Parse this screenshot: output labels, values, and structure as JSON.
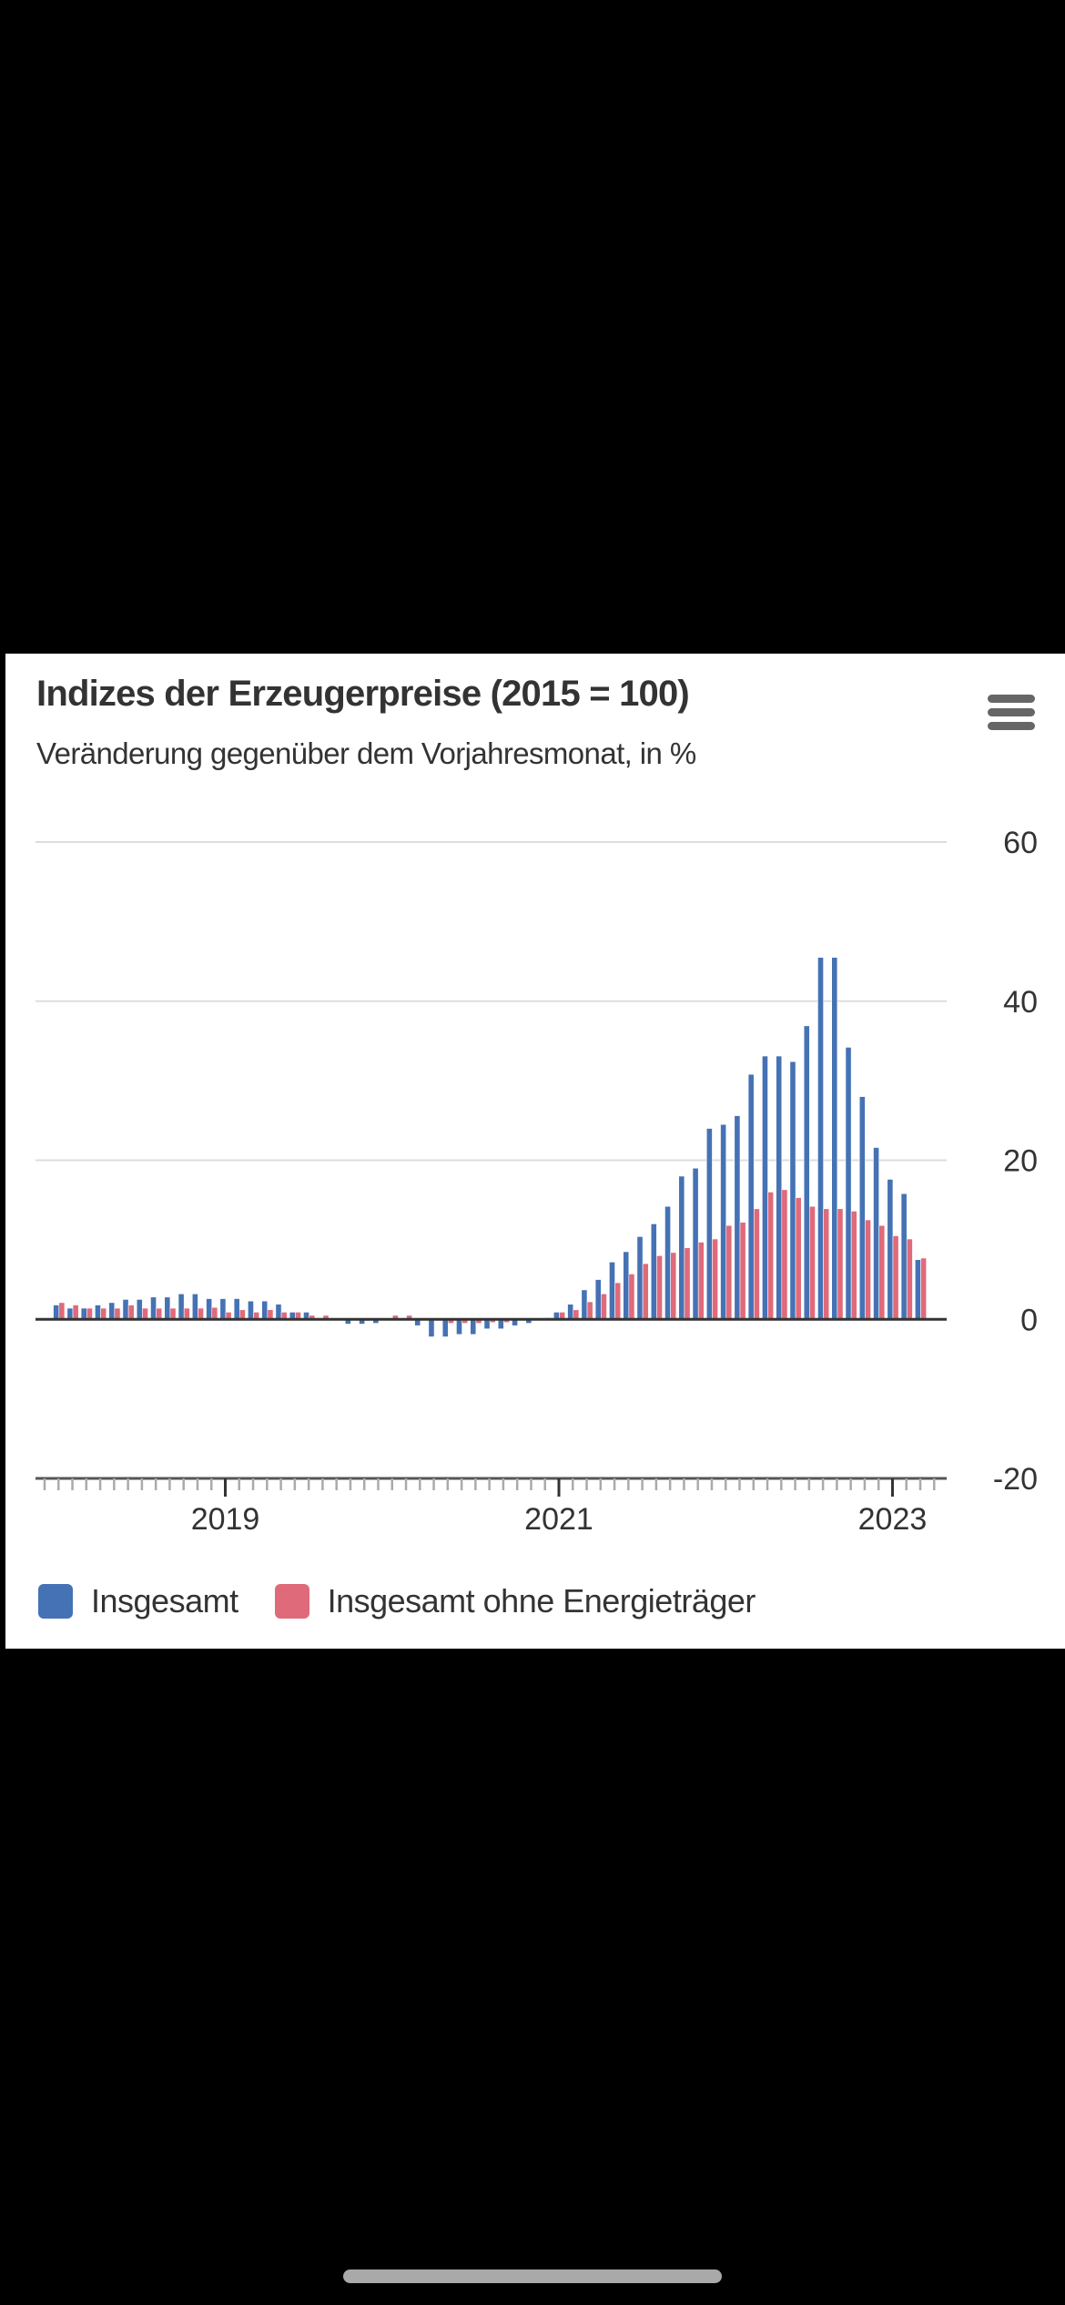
{
  "header": {
    "title": "Indizes der Erzeugerpreise (2015 = 100)",
    "subtitle": "Veränderung gegenüber dem Vorjahresmonat, in %",
    "menu_icon": "hamburger-menu-icon"
  },
  "colors": {
    "series_1": "#4572B4",
    "series_2": "#DF6A7A",
    "gridline": "#dddddd",
    "axis": "#555555",
    "zero_line": "#333333"
  },
  "chart_data": {
    "type": "bar",
    "title": "Indizes der Erzeugerpreise (2015 = 100)",
    "subtitle": "Veränderung gegenüber dem Vorjahresmonat, in %",
    "xlabel": "",
    "ylabel": "",
    "ylim": [
      -20,
      60
    ],
    "yticks": [
      "60",
      "40",
      "20",
      "0",
      "-20"
    ],
    "ytick_values": [
      60,
      40,
      20,
      0,
      -20
    ],
    "yaxis_position": "right",
    "grid": true,
    "legend_position": "bottom-left",
    "x_start": "2018-01",
    "x_axis_ticks_from": "2017-12",
    "x_axis_ticks_to": "2023-04",
    "xtick_labels": [
      {
        "label": "2019",
        "month": "2019-01"
      },
      {
        "label": "2021",
        "month": "2021-01"
      },
      {
        "label": "2023",
        "month": "2023-01"
      }
    ],
    "categories": [
      "2018-01",
      "2018-02",
      "2018-03",
      "2018-04",
      "2018-05",
      "2018-06",
      "2018-07",
      "2018-08",
      "2018-09",
      "2018-10",
      "2018-11",
      "2018-12",
      "2019-01",
      "2019-02",
      "2019-03",
      "2019-04",
      "2019-05",
      "2019-06",
      "2019-07",
      "2019-08",
      "2019-09",
      "2019-10",
      "2019-11",
      "2019-12",
      "2020-01",
      "2020-02",
      "2020-03",
      "2020-04",
      "2020-05",
      "2020-06",
      "2020-07",
      "2020-08",
      "2020-09",
      "2020-10",
      "2020-11",
      "2020-12",
      "2021-01",
      "2021-02",
      "2021-03",
      "2021-04",
      "2021-05",
      "2021-06",
      "2021-07",
      "2021-08",
      "2021-09",
      "2021-10",
      "2021-11",
      "2021-12",
      "2022-01",
      "2022-02",
      "2022-03",
      "2022-04",
      "2022-05",
      "2022-06",
      "2022-07",
      "2022-08",
      "2022-09",
      "2022-10",
      "2022-11",
      "2022-12",
      "2023-01",
      "2023-02",
      "2023-03"
    ],
    "series": [
      {
        "name": "Insgesamt",
        "color": "#4572B4",
        "values": [
          1.8,
          1.4,
          1.4,
          1.8,
          2.1,
          2.5,
          2.5,
          2.8,
          2.8,
          3.2,
          3.2,
          2.6,
          2.6,
          2.6,
          2.3,
          2.3,
          1.9,
          0.9,
          0.9,
          0.1,
          -0.1,
          -0.6,
          -0.6,
          -0.5,
          -0.1,
          0.0,
          -0.8,
          -2.2,
          -2.2,
          -1.9,
          -1.9,
          -1.2,
          -1.2,
          -0.8,
          -0.5,
          0.1,
          0.9,
          1.9,
          3.7,
          5.0,
          7.2,
          8.5,
          10.4,
          12.0,
          14.2,
          18.0,
          19.0,
          24.0,
          24.5,
          25.6,
          30.8,
          33.1,
          33.1,
          32.4,
          36.9,
          45.5,
          45.5,
          34.2,
          28.0,
          21.6,
          17.6,
          15.8,
          7.5
        ]
      },
      {
        "name": "Insgesamt ohne Energieträger",
        "color": "#DF6A7A",
        "values": [
          2.1,
          1.8,
          1.4,
          1.4,
          1.4,
          1.8,
          1.4,
          1.4,
          1.4,
          1.4,
          1.4,
          1.5,
          0.9,
          1.2,
          0.9,
          1.2,
          0.9,
          0.9,
          0.5,
          0.5,
          0.0,
          -0.1,
          -0.2,
          -0.1,
          0.5,
          0.5,
          -0.1,
          0.0,
          -0.5,
          -0.5,
          -0.5,
          -0.4,
          -0.4,
          -0.1,
          0.1,
          0.2,
          0.9,
          1.2,
          2.2,
          3.2,
          4.6,
          5.7,
          7.0,
          8.0,
          8.4,
          9.0,
          9.7,
          10.1,
          11.8,
          12.2,
          13.9,
          16.0,
          16.3,
          15.3,
          14.2,
          13.9,
          13.9,
          13.6,
          12.5,
          11.8,
          10.5,
          10.1,
          7.7
        ]
      }
    ]
  },
  "legend": {
    "items": [
      {
        "label": "Insgesamt",
        "color": "#4572B4"
      },
      {
        "label": "Insgesamt ohne Energieträger",
        "color": "#DF6A7A"
      }
    ]
  }
}
